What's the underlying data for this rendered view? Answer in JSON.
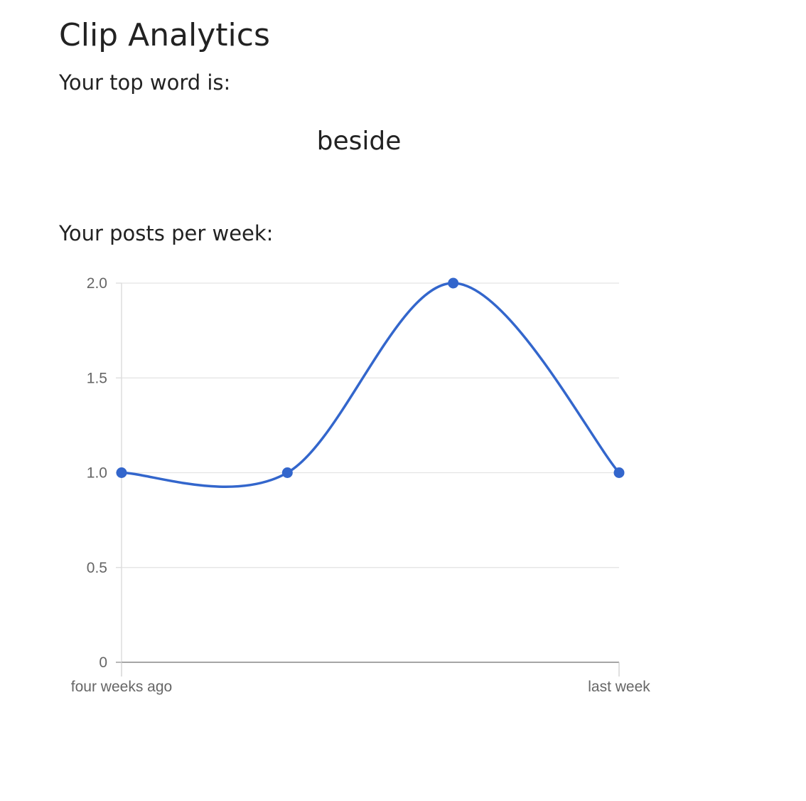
{
  "page": {
    "title": "Clip Analytics",
    "top_word_label": "Your top word is:",
    "top_word": "beside",
    "posts_label": "Your posts per week:"
  },
  "chart_data": {
    "type": "line",
    "x": [
      "four weeks ago",
      "",
      "",
      "last week"
    ],
    "series": [
      {
        "values": [
          1,
          1,
          2,
          1
        ],
        "color": "#3366cc"
      }
    ],
    "yticks": [
      "0",
      "0.5",
      "1.0",
      "1.5",
      "2.0"
    ],
    "ylim": [
      0,
      2
    ],
    "grid": true,
    "curve": "smooth"
  }
}
